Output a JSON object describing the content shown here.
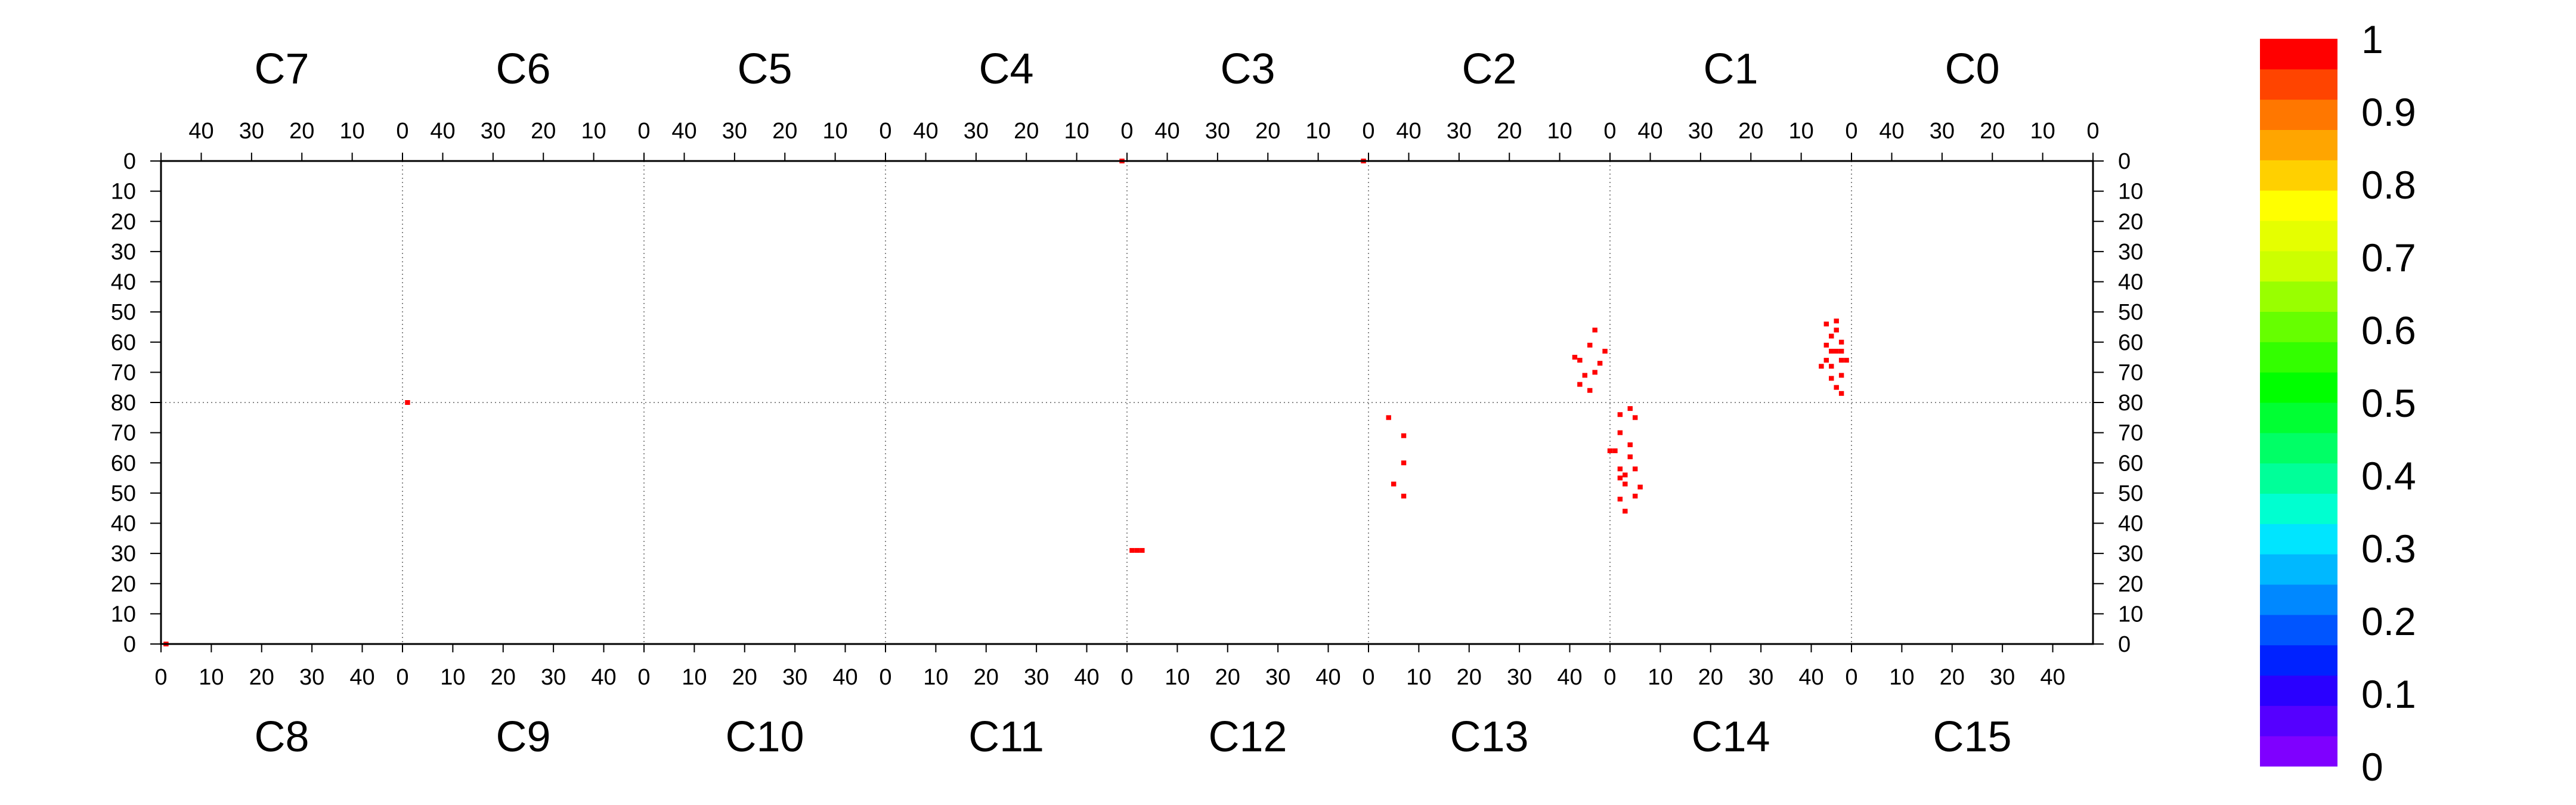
{
  "chart_data": {
    "type": "heatmap",
    "title": "",
    "top_chambers": [
      "C7",
      "C6",
      "C5",
      "C4",
      "C3",
      "C2",
      "C1",
      "C0"
    ],
    "bottom_chambers": [
      "C8",
      "C9",
      "C10",
      "C11",
      "C12",
      "C13",
      "C14",
      "C15"
    ],
    "top_x_ticks": [
      "40",
      "30",
      "20",
      "10",
      "0"
    ],
    "bottom_x_ticks": [
      "0",
      "10",
      "20",
      "30",
      "40"
    ],
    "y_ticks_top_half": [
      "0",
      "10",
      "20",
      "30",
      "40",
      "50",
      "60",
      "70",
      "80"
    ],
    "y_ticks_bottom_half": [
      "70",
      "60",
      "50",
      "40",
      "30",
      "20",
      "10",
      "0"
    ],
    "y_range_per_half": [
      0,
      80
    ],
    "x_range_per_chamber": [
      0,
      48
    ],
    "grid": "dotted separators between chambers and halves",
    "colorbar": {
      "range": [
        0,
        1
      ],
      "labels": [
        "0",
        "0.1",
        "0.2",
        "0.3",
        "0.4",
        "0.5",
        "0.6",
        "0.7",
        "0.8",
        "0.9",
        "1"
      ],
      "colors": [
        "#7f00ff",
        "#5500ff",
        "#2a00ff",
        "#0022ff",
        "#0055ff",
        "#0088ff",
        "#00b8ff",
        "#00e5ff",
        "#00ffd0",
        "#00ff99",
        "#00ff66",
        "#00ff33",
        "#00ff00",
        "#33ff00",
        "#66ff00",
        "#99ff00",
        "#ccff00",
        "#e5ff00",
        "#ffff00",
        "#ffd000",
        "#ffa500",
        "#ff7700",
        "#ff4400",
        "#ff0000"
      ]
    },
    "points": [
      {
        "half": "top",
        "chamber": "C4",
        "x": 1,
        "y": 0,
        "value": 1
      },
      {
        "half": "top",
        "chamber": "C3",
        "x": 1,
        "y": 0,
        "value": 1
      },
      {
        "half": "top",
        "chamber": "C6",
        "x": 47,
        "y": 80,
        "value": 1
      },
      {
        "half": "top",
        "chamber": "C1",
        "x": 3,
        "y": 53,
        "value": 1
      },
      {
        "half": "top",
        "chamber": "C1",
        "x": 5,
        "y": 54,
        "value": 1
      },
      {
        "half": "top",
        "chamber": "C1",
        "x": 3,
        "y": 56,
        "value": 1
      },
      {
        "half": "top",
        "chamber": "C1",
        "x": 4,
        "y": 58,
        "value": 1
      },
      {
        "half": "top",
        "chamber": "C1",
        "x": 2,
        "y": 60,
        "value": 1
      },
      {
        "half": "top",
        "chamber": "C1",
        "x": 5,
        "y": 61,
        "value": 1
      },
      {
        "half": "top",
        "chamber": "C1",
        "x": 2,
        "y": 63,
        "value": 1
      },
      {
        "half": "top",
        "chamber": "C1",
        "x": 3,
        "y": 63,
        "value": 1
      },
      {
        "half": "top",
        "chamber": "C1",
        "x": 4,
        "y": 63,
        "value": 1
      },
      {
        "half": "top",
        "chamber": "C1",
        "x": 1,
        "y": 66,
        "value": 1
      },
      {
        "half": "top",
        "chamber": "C1",
        "x": 2,
        "y": 66,
        "value": 1
      },
      {
        "half": "top",
        "chamber": "C1",
        "x": 5,
        "y": 66,
        "value": 1
      },
      {
        "half": "top",
        "chamber": "C1",
        "x": 6,
        "y": 68,
        "value": 1
      },
      {
        "half": "top",
        "chamber": "C1",
        "x": 4,
        "y": 68,
        "value": 1
      },
      {
        "half": "top",
        "chamber": "C1",
        "x": 2,
        "y": 71,
        "value": 1
      },
      {
        "half": "top",
        "chamber": "C1",
        "x": 4,
        "y": 72,
        "value": 1
      },
      {
        "half": "top",
        "chamber": "C1",
        "x": 3,
        "y": 75,
        "value": 1
      },
      {
        "half": "top",
        "chamber": "C1",
        "x": 2,
        "y": 77,
        "value": 1
      },
      {
        "half": "top",
        "chamber": "C2",
        "x": 3,
        "y": 56,
        "value": 1
      },
      {
        "half": "top",
        "chamber": "C2",
        "x": 4,
        "y": 61,
        "value": 1
      },
      {
        "half": "top",
        "chamber": "C2",
        "x": 1,
        "y": 63,
        "value": 1
      },
      {
        "half": "top",
        "chamber": "C2",
        "x": 7,
        "y": 65,
        "value": 1
      },
      {
        "half": "top",
        "chamber": "C2",
        "x": 6,
        "y": 66,
        "value": 1
      },
      {
        "half": "top",
        "chamber": "C2",
        "x": 2,
        "y": 67,
        "value": 1
      },
      {
        "half": "top",
        "chamber": "C2",
        "x": 3,
        "y": 70,
        "value": 1
      },
      {
        "half": "top",
        "chamber": "C2",
        "x": 5,
        "y": 71,
        "value": 1
      },
      {
        "half": "top",
        "chamber": "C2",
        "x": 6,
        "y": 74,
        "value": 1
      },
      {
        "half": "top",
        "chamber": "C2",
        "x": 4,
        "y": 76,
        "value": 1
      },
      {
        "half": "bottom",
        "chamber": "C12",
        "x": 1,
        "y": 31,
        "value": 1
      },
      {
        "half": "bottom",
        "chamber": "C12",
        "x": 2,
        "y": 31,
        "value": 1
      },
      {
        "half": "bottom",
        "chamber": "C12",
        "x": 3,
        "y": 31,
        "value": 1
      },
      {
        "half": "bottom",
        "chamber": "C8",
        "x": 1,
        "y": 0,
        "value": 1
      },
      {
        "half": "bottom",
        "chamber": "C14",
        "x": 2,
        "y": 48,
        "value": 1
      },
      {
        "half": "bottom",
        "chamber": "C14",
        "x": 3,
        "y": 44,
        "value": 1
      },
      {
        "half": "bottom",
        "chamber": "C14",
        "x": 5,
        "y": 49,
        "value": 1
      },
      {
        "half": "bottom",
        "chamber": "C14",
        "x": 6,
        "y": 52,
        "value": 1
      },
      {
        "half": "bottom",
        "chamber": "C14",
        "x": 3,
        "y": 53,
        "value": 1
      },
      {
        "half": "bottom",
        "chamber": "C14",
        "x": 2,
        "y": 55,
        "value": 1
      },
      {
        "half": "bottom",
        "chamber": "C14",
        "x": 3,
        "y": 56,
        "value": 1
      },
      {
        "half": "bottom",
        "chamber": "C14",
        "x": 5,
        "y": 58,
        "value": 1
      },
      {
        "half": "bottom",
        "chamber": "C14",
        "x": 2,
        "y": 58,
        "value": 1
      },
      {
        "half": "bottom",
        "chamber": "C14",
        "x": 4,
        "y": 62,
        "value": 1
      },
      {
        "half": "bottom",
        "chamber": "C14",
        "x": 0,
        "y": 64,
        "value": 1
      },
      {
        "half": "bottom",
        "chamber": "C14",
        "x": 1,
        "y": 64,
        "value": 1
      },
      {
        "half": "bottom",
        "chamber": "C14",
        "x": 4,
        "y": 66,
        "value": 1
      },
      {
        "half": "bottom",
        "chamber": "C14",
        "x": 2,
        "y": 70,
        "value": 1
      },
      {
        "half": "bottom",
        "chamber": "C14",
        "x": 5,
        "y": 75,
        "value": 1
      },
      {
        "half": "bottom",
        "chamber": "C14",
        "x": 2,
        "y": 76,
        "value": 1
      },
      {
        "half": "bottom",
        "chamber": "C14",
        "x": 4,
        "y": 78,
        "value": 1
      },
      {
        "half": "bottom",
        "chamber": "C13",
        "x": 7,
        "y": 49,
        "value": 1
      },
      {
        "half": "bottom",
        "chamber": "C13",
        "x": 5,
        "y": 53,
        "value": 1
      },
      {
        "half": "bottom",
        "chamber": "C13",
        "x": 7,
        "y": 60,
        "value": 1
      },
      {
        "half": "bottom",
        "chamber": "C13",
        "x": 7,
        "y": 69,
        "value": 1
      },
      {
        "half": "bottom",
        "chamber": "C13",
        "x": 4,
        "y": 75,
        "value": 1
      }
    ]
  }
}
